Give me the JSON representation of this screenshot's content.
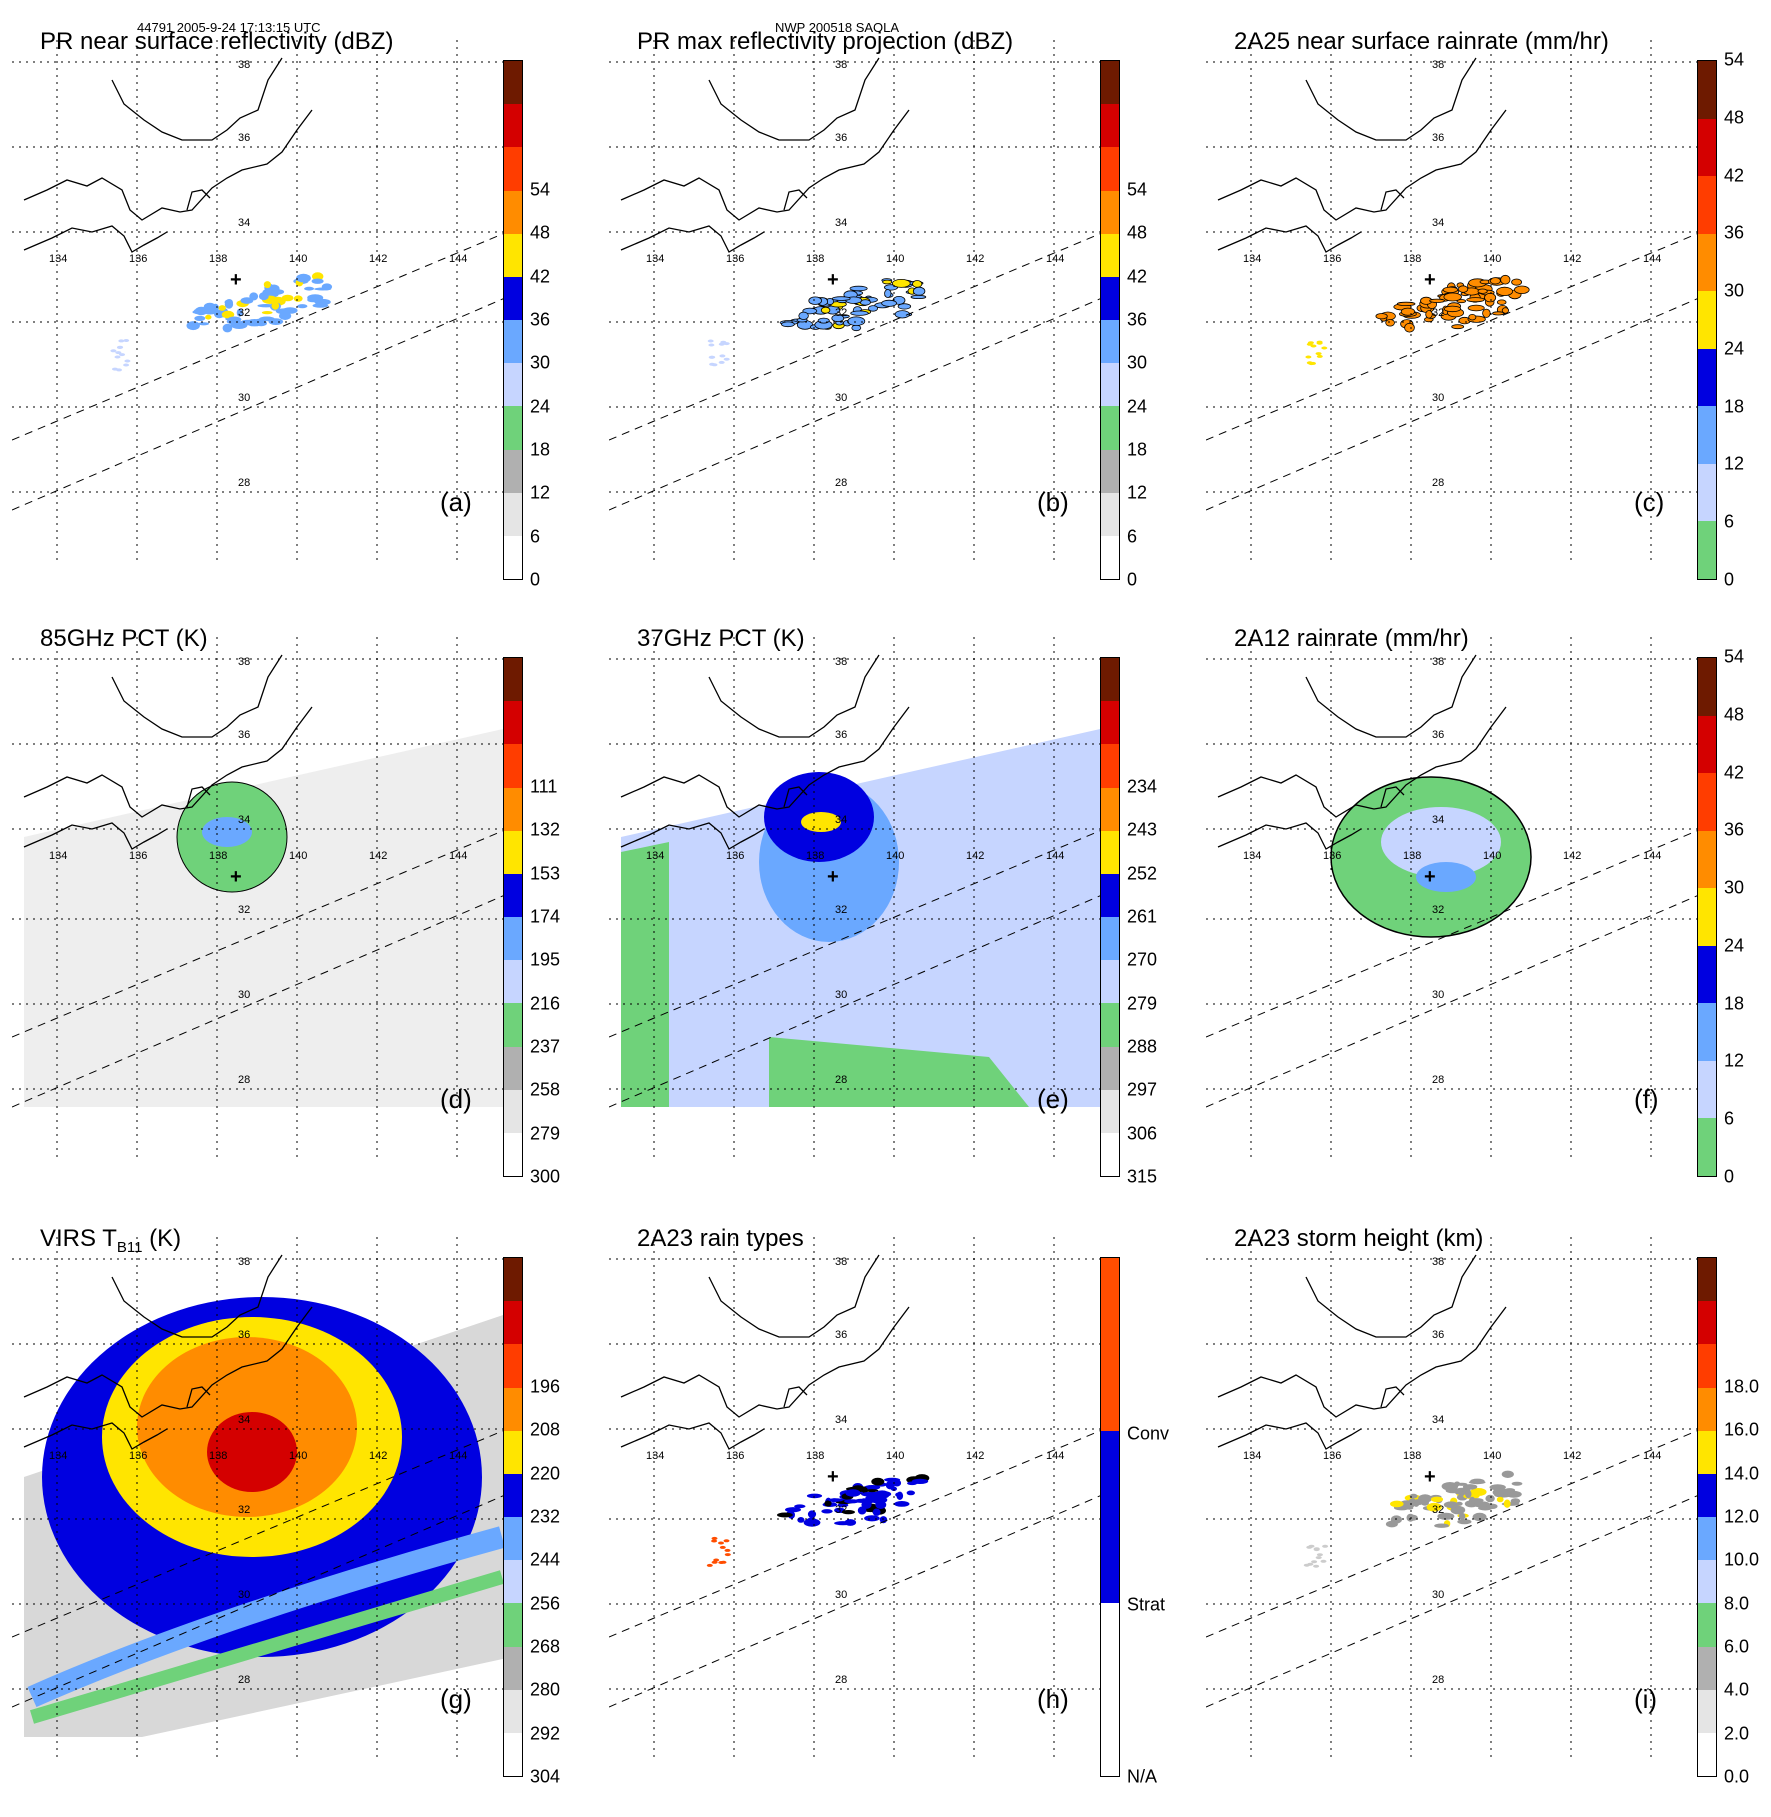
{
  "header": {
    "left": "44791 2005-9-24 17:13:15 UTC",
    "center": "NWP 200518 SAOLA"
  },
  "map": {
    "lon_labels": [
      "134",
      "136",
      "138",
      "140",
      "142",
      "144"
    ],
    "lat_labels": [
      "38",
      "36",
      "34",
      "32",
      "30",
      "28"
    ]
  },
  "panels": [
    {
      "id": "a",
      "title": "PR near surface reflectivity (dBZ)",
      "letter": "(a)",
      "ticks": [
        "0",
        "6",
        "12",
        "18",
        "24",
        "30",
        "36",
        "42",
        "48",
        "54"
      ],
      "colors": [
        "#ffffff",
        "#e5e5e5",
        "#b0b0b0",
        "#6fd27a",
        "#c6d5ff",
        "#6aa8ff",
        "#0000e0",
        "#ffe500",
        "#ff8c00",
        "#ff3d00",
        "#d40000",
        "#6e1a00"
      ],
      "fill": "reflect"
    },
    {
      "id": "b",
      "title": "PR max reflectivity projection (dBZ)",
      "letter": "(b)",
      "ticks": [
        "0",
        "6",
        "12",
        "18",
        "24",
        "30",
        "36",
        "42",
        "48",
        "54"
      ],
      "colors": [
        "#ffffff",
        "#e5e5e5",
        "#b0b0b0",
        "#6fd27a",
        "#c6d5ff",
        "#6aa8ff",
        "#0000e0",
        "#ffe500",
        "#ff8c00",
        "#ff3d00",
        "#d40000",
        "#6e1a00"
      ],
      "fill": "reflect2"
    },
    {
      "id": "c",
      "title": "2A25 near surface rainrate (mm/hr)",
      "letter": "(c)",
      "ticks": [
        "0",
        "6",
        "12",
        "18",
        "24",
        "30",
        "36",
        "42",
        "48",
        "54"
      ],
      "colors": [
        "#6fd27a",
        "#c6d5ff",
        "#6aa8ff",
        "#0000e0",
        "#ffe500",
        "#ff8c00",
        "#ff3d00",
        "#d40000",
        "#6e1a00"
      ],
      "fill": "rain"
    },
    {
      "id": "d",
      "title": "85GHz PCT (K)",
      "letter": "(d)",
      "ticks": [
        "300",
        "279",
        "258",
        "237",
        "216",
        "195",
        "174",
        "153",
        "132",
        "111"
      ],
      "colors": [
        "#ffffff",
        "#e5e5e5",
        "#b0b0b0",
        "#6fd27a",
        "#c6d5ff",
        "#6aa8ff",
        "#0000e0",
        "#ffe500",
        "#ff8c00",
        "#ff3d00",
        "#d40000",
        "#6e1a00"
      ],
      "fill": "pct85"
    },
    {
      "id": "e",
      "title": "37GHz PCT (K)",
      "letter": "(e)",
      "ticks": [
        "315",
        "306",
        "297",
        "288",
        "279",
        "270",
        "261",
        "252",
        "243",
        "234"
      ],
      "colors": [
        "#ffffff",
        "#e5e5e5",
        "#b0b0b0",
        "#6fd27a",
        "#c6d5ff",
        "#6aa8ff",
        "#0000e0",
        "#ffe500",
        "#ff8c00",
        "#ff3d00",
        "#d40000",
        "#6e1a00"
      ],
      "fill": "pct37"
    },
    {
      "id": "f",
      "title": "2A12 rainrate (mm/hr)",
      "letter": "(f)",
      "ticks": [
        "0",
        "6",
        "12",
        "18",
        "24",
        "30",
        "36",
        "42",
        "48",
        "54"
      ],
      "colors": [
        "#6fd27a",
        "#c6d5ff",
        "#6aa8ff",
        "#0000e0",
        "#ffe500",
        "#ff8c00",
        "#ff3d00",
        "#d40000",
        "#6e1a00"
      ],
      "fill": "rain12"
    },
    {
      "id": "g",
      "title": "VIRS T",
      "title_sub": "B11",
      "title_end": " (K)",
      "letter": "(g)",
      "ticks": [
        "304",
        "292",
        "280",
        "268",
        "256",
        "244",
        "232",
        "220",
        "208",
        "196"
      ],
      "colors": [
        "#ffffff",
        "#e5e5e5",
        "#b0b0b0",
        "#6fd27a",
        "#c6d5ff",
        "#6aa8ff",
        "#0000e0",
        "#ffe500",
        "#ff8c00",
        "#ff3d00",
        "#d40000",
        "#6e1a00"
      ],
      "fill": "virs"
    },
    {
      "id": "h",
      "title": "2A23 rain types",
      "letter": "(h)",
      "ticks": [
        "N/A",
        "Strat",
        "Conv"
      ],
      "colors": [
        "#ffffff",
        "#0000e0",
        "#ff4d00"
      ],
      "fill": "types"
    },
    {
      "id": "i",
      "title": "2A23 storm height (km)",
      "letter": "(i)",
      "ticks": [
        "0.0",
        "2.0",
        "4.0",
        "6.0",
        "8.0",
        "10.0",
        "12.0",
        "14.0",
        "16.0",
        "18.0"
      ],
      "colors": [
        "#ffffff",
        "#e5e5e5",
        "#b0b0b0",
        "#6fd27a",
        "#c6d5ff",
        "#6aa8ff",
        "#0000e0",
        "#ffe500",
        "#ff8c00",
        "#ff3d00",
        "#d40000",
        "#6e1a00"
      ],
      "fill": "height"
    }
  ]
}
